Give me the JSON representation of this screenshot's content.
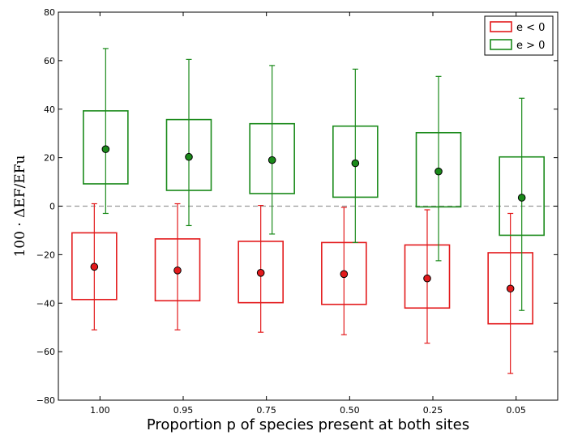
{
  "chart_data": {
    "type": "box",
    "title": "",
    "xlabel": "Proportion p of species present at both sites",
    "ylabel": "100 · ΔEF/EFu",
    "categories": [
      "1.00",
      "0.95",
      "0.75",
      "0.50",
      "0.25",
      "0.05"
    ],
    "ylim": [
      -80,
      80
    ],
    "yticks": [
      -80,
      -60,
      -40,
      -20,
      0,
      20,
      40,
      60,
      80
    ],
    "ytick_labels": [
      "−80",
      "−60",
      "−40",
      "−20",
      "0",
      "20",
      "40",
      "60",
      "80"
    ],
    "reference_line": 0,
    "legend_position": "top-right",
    "series": [
      {
        "name": "e < 0",
        "color": "#e31a1c",
        "mean": [
          -25,
          -26.5,
          -27.5,
          -28,
          -29.8,
          -34
        ],
        "box_low": [
          -38.5,
          -39,
          -39.8,
          -40.5,
          -42,
          -48.5
        ],
        "box_high": [
          -11,
          -13.5,
          -14.5,
          -15,
          -16,
          -19.2
        ],
        "whisker_low": [
          -51,
          -51,
          -52,
          -53,
          -56.5,
          -69
        ],
        "whisker_high": [
          1,
          1,
          0.3,
          -0.5,
          -1.5,
          -3
        ]
      },
      {
        "name": "e > 0",
        "color": "#1a8a1a",
        "mean": [
          23.5,
          20.3,
          19,
          17.7,
          14.3,
          3.5
        ],
        "box_low": [
          9.2,
          6.5,
          5.2,
          3.7,
          -0.3,
          -12
        ],
        "box_high": [
          39.3,
          35.7,
          34,
          33,
          30.3,
          20.3
        ],
        "whisker_low": [
          -3,
          -8,
          -11.5,
          -15,
          -22.5,
          -43
        ],
        "whisker_high": [
          65,
          60.5,
          58,
          56.5,
          53.5,
          44.5
        ]
      }
    ]
  }
}
